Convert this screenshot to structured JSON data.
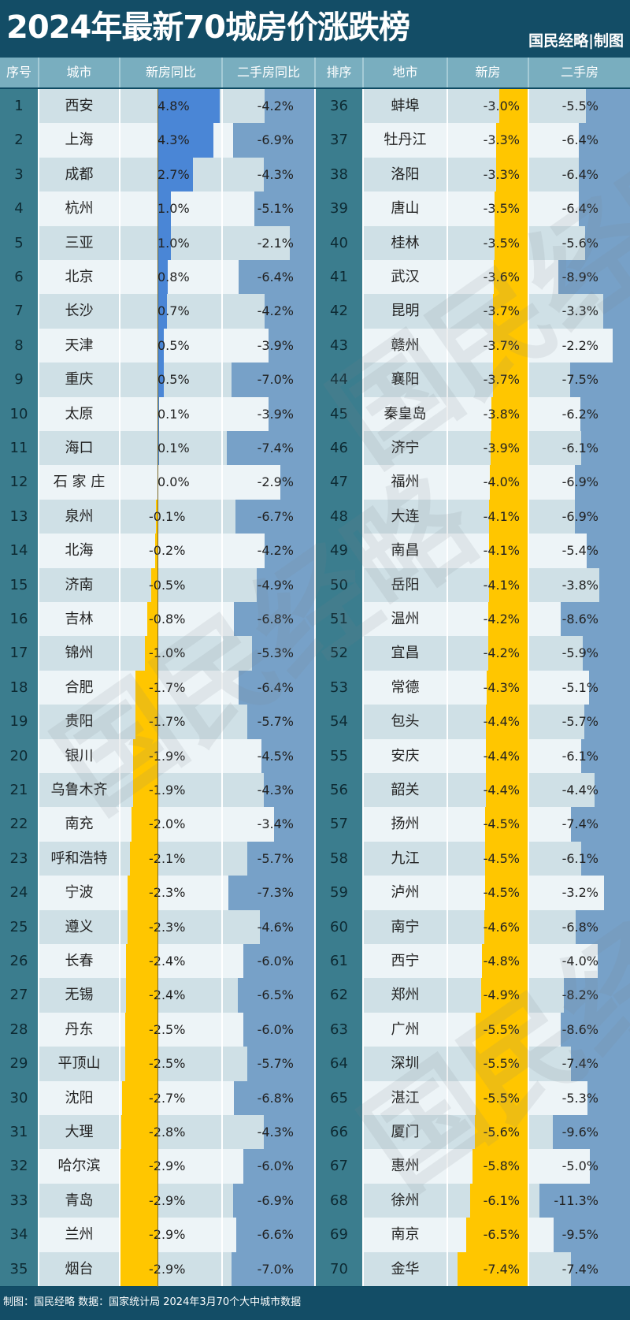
{
  "header": {
    "title": "2024年最新70城房价涨跌榜",
    "brand": "国民经略|制图"
  },
  "columns": {
    "left": [
      "序号",
      "城市",
      "新房同比",
      "二手房同比"
    ],
    "right": [
      "排序",
      "地市",
      "新房",
      "二手房"
    ]
  },
  "footer": {
    "text": "制图：国民经略 数据：国家统计局  2024年3月70个大中城市数据"
  },
  "colors": {
    "header_bg": "#134d66",
    "column_header_bg": "#79aebf",
    "rank_bg": "#3b7d8e",
    "positive_bar": "#4a86d6",
    "negative_bar": "#ffc600",
    "second_hand_bar": "#77a1c8"
  },
  "watermark": "国民经略",
  "rows": [
    {
      "rank": "1",
      "city": "西安",
      "new": "4.8%",
      "second": "-4.2%"
    },
    {
      "rank": "2",
      "city": "上海",
      "new": "4.3%",
      "second": "-6.9%"
    },
    {
      "rank": "3",
      "city": "成都",
      "new": "2.7%",
      "second": "-4.3%"
    },
    {
      "rank": "4",
      "city": "杭州",
      "new": "1.0%",
      "second": "-5.1%"
    },
    {
      "rank": "5",
      "city": "三亚",
      "new": "1.0%",
      "second": "-2.1%"
    },
    {
      "rank": "6",
      "city": "北京",
      "new": "0.8%",
      "second": "-6.4%"
    },
    {
      "rank": "7",
      "city": "长沙",
      "new": "0.7%",
      "second": "-4.2%"
    },
    {
      "rank": "8",
      "city": "天津",
      "new": "0.5%",
      "second": "-3.9%"
    },
    {
      "rank": "9",
      "city": "重庆",
      "new": "0.5%",
      "second": "-7.0%"
    },
    {
      "rank": "10",
      "city": "太原",
      "new": "0.1%",
      "second": "-3.9%"
    },
    {
      "rank": "11",
      "city": "海口",
      "new": "0.1%",
      "second": "-7.4%"
    },
    {
      "rank": "12",
      "city": "石 家 庄",
      "new": "0.0%",
      "second": "-2.9%"
    },
    {
      "rank": "13",
      "city": "泉州",
      "new": "-0.1%",
      "second": "-6.7%"
    },
    {
      "rank": "14",
      "city": "北海",
      "new": "-0.2%",
      "second": "-4.2%"
    },
    {
      "rank": "15",
      "city": "济南",
      "new": "-0.5%",
      "second": "-4.9%"
    },
    {
      "rank": "16",
      "city": "吉林",
      "new": "-0.8%",
      "second": "-6.8%"
    },
    {
      "rank": "17",
      "city": "锦州",
      "new": "-1.0%",
      "second": "-5.3%"
    },
    {
      "rank": "18",
      "city": "合肥",
      "new": "-1.7%",
      "second": "-6.4%"
    },
    {
      "rank": "19",
      "city": "贵阳",
      "new": "-1.7%",
      "second": "-5.7%"
    },
    {
      "rank": "20",
      "city": "银川",
      "new": "-1.9%",
      "second": "-4.5%"
    },
    {
      "rank": "21",
      "city": "乌鲁木齐",
      "new": "-1.9%",
      "second": "-4.3%"
    },
    {
      "rank": "22",
      "city": "南充",
      "new": "-2.0%",
      "second": "-3.4%"
    },
    {
      "rank": "23",
      "city": "呼和浩特",
      "new": "-2.1%",
      "second": "-5.7%"
    },
    {
      "rank": "24",
      "city": "宁波",
      "new": "-2.3%",
      "second": "-7.3%"
    },
    {
      "rank": "25",
      "city": "遵义",
      "new": "-2.3%",
      "second": "-4.6%"
    },
    {
      "rank": "26",
      "city": "长春",
      "new": "-2.4%",
      "second": "-6.0%"
    },
    {
      "rank": "27",
      "city": "无锡",
      "new": "-2.4%",
      "second": "-6.5%"
    },
    {
      "rank": "28",
      "city": "丹东",
      "new": "-2.5%",
      "second": "-6.0%"
    },
    {
      "rank": "29",
      "city": "平顶山",
      "new": "-2.5%",
      "second": "-5.7%"
    },
    {
      "rank": "30",
      "city": "沈阳",
      "new": "-2.7%",
      "second": "-6.8%"
    },
    {
      "rank": "31",
      "city": "大理",
      "new": "-2.8%",
      "second": "-4.3%"
    },
    {
      "rank": "32",
      "city": "哈尔滨",
      "new": "-2.9%",
      "second": "-6.0%"
    },
    {
      "rank": "33",
      "city": "青岛",
      "new": "-2.9%",
      "second": "-6.9%"
    },
    {
      "rank": "34",
      "city": "兰州",
      "new": "-2.9%",
      "second": "-6.6%"
    },
    {
      "rank": "35",
      "city": "烟台",
      "new": "-2.9%",
      "second": "-7.0%"
    },
    {
      "rank": "36",
      "city": "蚌埠",
      "new": "-3.0%",
      "second": "-5.5%"
    },
    {
      "rank": "37",
      "city": "牡丹江",
      "new": "-3.3%",
      "second": "-6.4%"
    },
    {
      "rank": "38",
      "city": "洛阳",
      "new": "-3.3%",
      "second": "-6.4%"
    },
    {
      "rank": "39",
      "city": "唐山",
      "new": "-3.5%",
      "second": "-6.4%"
    },
    {
      "rank": "40",
      "city": "桂林",
      "new": "-3.5%",
      "second": "-5.6%"
    },
    {
      "rank": "41",
      "city": "武汉",
      "new": "-3.6%",
      "second": "-8.9%"
    },
    {
      "rank": "42",
      "city": "昆明",
      "new": "-3.7%",
      "second": "-3.3%"
    },
    {
      "rank": "43",
      "city": "赣州",
      "new": "-3.7%",
      "second": "-2.2%"
    },
    {
      "rank": "44",
      "city": "襄阳",
      "new": "-3.7%",
      "second": "-7.5%"
    },
    {
      "rank": "45",
      "city": "秦皇岛",
      "new": "-3.8%",
      "second": "-6.2%"
    },
    {
      "rank": "46",
      "city": "济宁",
      "new": "-3.9%",
      "second": "-6.1%"
    },
    {
      "rank": "47",
      "city": "福州",
      "new": "-4.0%",
      "second": "-6.9%"
    },
    {
      "rank": "48",
      "city": "大连",
      "new": "-4.1%",
      "second": "-6.9%"
    },
    {
      "rank": "49",
      "city": "南昌",
      "new": "-4.1%",
      "second": "-5.4%"
    },
    {
      "rank": "50",
      "city": "岳阳",
      "new": "-4.1%",
      "second": "-3.8%"
    },
    {
      "rank": "51",
      "city": "温州",
      "new": "-4.2%",
      "second": "-8.6%"
    },
    {
      "rank": "52",
      "city": "宜昌",
      "new": "-4.2%",
      "second": "-5.9%"
    },
    {
      "rank": "53",
      "city": "常德",
      "new": "-4.3%",
      "second": "-5.1%"
    },
    {
      "rank": "54",
      "city": "包头",
      "new": "-4.4%",
      "second": "-5.7%"
    },
    {
      "rank": "55",
      "city": "安庆",
      "new": "-4.4%",
      "second": "-6.1%"
    },
    {
      "rank": "56",
      "city": "韶关",
      "new": "-4.4%",
      "second": "-4.4%"
    },
    {
      "rank": "57",
      "city": "扬州",
      "new": "-4.5%",
      "second": "-7.4%"
    },
    {
      "rank": "58",
      "city": "九江",
      "new": "-4.5%",
      "second": "-6.1%"
    },
    {
      "rank": "59",
      "city": "泸州",
      "new": "-4.5%",
      "second": "-3.2%"
    },
    {
      "rank": "60",
      "city": "南宁",
      "new": "-4.6%",
      "second": "-6.8%"
    },
    {
      "rank": "61",
      "city": "西宁",
      "new": "-4.8%",
      "second": "-4.0%"
    },
    {
      "rank": "62",
      "city": "郑州",
      "new": "-4.9%",
      "second": "-8.2%"
    },
    {
      "rank": "63",
      "city": "广州",
      "new": "-5.5%",
      "second": "-8.6%"
    },
    {
      "rank": "64",
      "city": "深圳",
      "new": "-5.5%",
      "second": "-7.4%"
    },
    {
      "rank": "65",
      "city": "湛江",
      "new": "-5.5%",
      "second": "-5.3%"
    },
    {
      "rank": "66",
      "city": "厦门",
      "new": "-5.6%",
      "second": "-9.6%"
    },
    {
      "rank": "67",
      "city": "惠州",
      "new": "-5.8%",
      "second": "-5.0%"
    },
    {
      "rank": "68",
      "city": "徐州",
      "new": "-6.1%",
      "second": "-11.3%"
    },
    {
      "rank": "69",
      "city": "南京",
      "new": "-6.5%",
      "second": "-9.5%"
    },
    {
      "rank": "70",
      "city": "金华",
      "new": "-7.4%",
      "second": "-7.4%"
    }
  ],
  "chart_data": {
    "type": "table",
    "title": "2024年最新70城房价涨跌榜",
    "subtitle": "国民经略|制图",
    "source": "制图：国民经略 数据：国家统计局  2024年3月70个大中城市数据",
    "columns": [
      "序号",
      "城市",
      "新房同比",
      "二手房同比"
    ],
    "categories": [
      "西安",
      "上海",
      "成都",
      "杭州",
      "三亚",
      "北京",
      "长沙",
      "天津",
      "重庆",
      "太原",
      "海口",
      "石家庄",
      "泉州",
      "北海",
      "济南",
      "吉林",
      "锦州",
      "合肥",
      "贵阳",
      "银川",
      "乌鲁木齐",
      "南充",
      "呼和浩特",
      "宁波",
      "遵义",
      "长春",
      "无锡",
      "丹东",
      "平顶山",
      "沈阳",
      "大理",
      "哈尔滨",
      "青岛",
      "兰州",
      "烟台",
      "蚌埠",
      "牡丹江",
      "洛阳",
      "唐山",
      "桂林",
      "武汉",
      "昆明",
      "赣州",
      "襄阳",
      "秦皇岛",
      "济宁",
      "福州",
      "大连",
      "南昌",
      "岳阳",
      "温州",
      "宜昌",
      "常德",
      "包头",
      "安庆",
      "韶关",
      "扬州",
      "九江",
      "泸州",
      "南宁",
      "西宁",
      "郑州",
      "广州",
      "深圳",
      "湛江",
      "厦门",
      "惠州",
      "徐州",
      "南京",
      "金华"
    ],
    "series": [
      {
        "name": "新房同比 (%)",
        "values": [
          4.8,
          4.3,
          2.7,
          1.0,
          1.0,
          0.8,
          0.7,
          0.5,
          0.5,
          0.1,
          0.1,
          0.0,
          -0.1,
          -0.2,
          -0.5,
          -0.8,
          -1.0,
          -1.7,
          -1.7,
          -1.9,
          -1.9,
          -2.0,
          -2.1,
          -2.3,
          -2.3,
          -2.4,
          -2.4,
          -2.5,
          -2.5,
          -2.7,
          -2.8,
          -2.9,
          -2.9,
          -2.9,
          -2.9,
          -3.0,
          -3.3,
          -3.3,
          -3.5,
          -3.5,
          -3.6,
          -3.7,
          -3.7,
          -3.7,
          -3.8,
          -3.9,
          -4.0,
          -4.1,
          -4.1,
          -4.1,
          -4.2,
          -4.2,
          -4.3,
          -4.4,
          -4.4,
          -4.4,
          -4.5,
          -4.5,
          -4.5,
          -4.6,
          -4.8,
          -4.9,
          -5.5,
          -5.5,
          -5.5,
          -5.6,
          -5.8,
          -6.1,
          -6.5,
          -7.4
        ]
      },
      {
        "name": "二手房同比 (%)",
        "values": [
          -4.2,
          -6.9,
          -4.3,
          -5.1,
          -2.1,
          -6.4,
          -4.2,
          -3.9,
          -7.0,
          -3.9,
          -7.4,
          -2.9,
          -6.7,
          -4.2,
          -4.9,
          -6.8,
          -5.3,
          -6.4,
          -5.7,
          -4.5,
          -4.3,
          -3.4,
          -5.7,
          -7.3,
          -4.6,
          -6.0,
          -6.5,
          -6.0,
          -5.7,
          -6.8,
          -4.3,
          -6.0,
          -6.9,
          -6.6,
          -7.0,
          -5.5,
          -6.4,
          -6.4,
          -6.4,
          -5.6,
          -8.9,
          -3.3,
          -2.2,
          -7.5,
          -6.2,
          -6.1,
          -6.9,
          -6.9,
          -5.4,
          -3.8,
          -8.6,
          -5.9,
          -5.1,
          -5.7,
          -6.1,
          -4.4,
          -7.4,
          -6.1,
          -3.2,
          -6.8,
          -4.0,
          -8.2,
          -8.6,
          -7.4,
          -5.3,
          -9.6,
          -5.0,
          -11.3,
          -9.5,
          -7.4
        ]
      }
    ],
    "xlabel": "",
    "ylabel": "同比 (%)"
  }
}
